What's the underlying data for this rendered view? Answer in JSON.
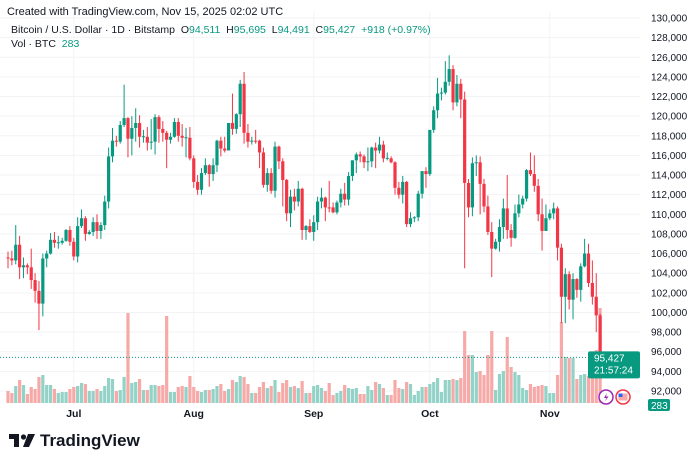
{
  "header": {
    "created": "Created with TradingView.com, Nov 15, 2025 02:02 UTC",
    "symbol": "Bitcoin / U.S. Dollar · 1D · Bitstamp",
    "open_label": "O",
    "open": "94,511",
    "high_label": "H",
    "high": "95,695",
    "low_label": "L",
    "low": "94,491",
    "close_label": "C",
    "close": "95,427",
    "change": "+918 (+0.97%)",
    "volume_label": "Vol · BTC",
    "volume": "283"
  },
  "price_label": {
    "price": "95,427",
    "countdown": "21:57:24"
  },
  "volume_badge": "283",
  "brand": "TradingView",
  "icons": [
    "lightning-event-icon",
    "us-flag-event-icon"
  ],
  "colors": {
    "up": "#089981",
    "down": "#f23645",
    "up_volume": "#92d2c7",
    "down_volume": "#f7a9a7",
    "grid": "#f2f3f5"
  },
  "chart_data": {
    "type": "candlestick",
    "ylim": [
      92000,
      130000
    ],
    "y_ticks": [
      "130,000",
      "128,000",
      "126,000",
      "124,000",
      "122,000",
      "120,000",
      "118,000",
      "116,000",
      "114,000",
      "112,000",
      "110,000",
      "108,000",
      "106,000",
      "104,000",
      "102,000",
      "100,000",
      "98,000",
      "96,000",
      "94,000",
      "92,000"
    ],
    "x_ticks": [
      {
        "date": "07-01",
        "label": "Jul"
      },
      {
        "date": "08-01",
        "label": "Aug"
      },
      {
        "date": "09-01",
        "label": "Sep"
      },
      {
        "date": "10-01",
        "label": "Oct"
      },
      {
        "date": "11-01",
        "label": "Nov"
      }
    ],
    "columns": [
      "date",
      "open",
      "high",
      "low",
      "close",
      "volume"
    ],
    "rows": [
      [
        "06-14",
        105600,
        106200,
        104500,
        105500,
        1200
      ],
      [
        "06-15",
        105500,
        106300,
        104800,
        105300,
        1000
      ],
      [
        "06-16",
        105300,
        108900,
        104900,
        106900,
        1700
      ],
      [
        "06-17",
        106900,
        107800,
        103400,
        104600,
        2300
      ],
      [
        "06-18",
        104600,
        105600,
        103500,
        104800,
        1800
      ],
      [
        "06-19",
        104800,
        105000,
        103900,
        104600,
        900
      ],
      [
        "06-20",
        104600,
        106500,
        102400,
        103300,
        1600
      ],
      [
        "06-21",
        103300,
        104000,
        101000,
        102200,
        1400
      ],
      [
        "06-22",
        102200,
        103200,
        98200,
        100900,
        2600
      ],
      [
        "06-23",
        100900,
        106000,
        99600,
        105500,
        2800
      ],
      [
        "06-24",
        105500,
        106300,
        104600,
        106000,
        1800
      ],
      [
        "06-25",
        106000,
        108100,
        105900,
        107400,
        1800
      ],
      [
        "06-26",
        107400,
        108200,
        106600,
        107100,
        1400
      ],
      [
        "06-27",
        107100,
        107800,
        106500,
        107150,
        1000
      ],
      [
        "06-28",
        107100,
        107600,
        106900,
        107300,
        1100
      ],
      [
        "06-29",
        107300,
        108500,
        107200,
        108400,
        1100
      ],
      [
        "06-30",
        108400,
        108800,
        106800,
        107200,
        1400
      ],
      [
        "07-01",
        107200,
        107600,
        105300,
        105700,
        1600
      ],
      [
        "07-02",
        105700,
        109700,
        105100,
        108800,
        1700
      ],
      [
        "07-03",
        108800,
        110500,
        108600,
        109600,
        2000
      ],
      [
        "07-04",
        109600,
        109800,
        107300,
        108000,
        1900
      ],
      [
        "07-05",
        108000,
        108400,
        107900,
        108200,
        1200
      ],
      [
        "07-06",
        108200,
        109700,
        107800,
        109200,
        1200
      ],
      [
        "07-07",
        109200,
        110000,
        107500,
        108300,
        1400
      ],
      [
        "07-08",
        108300,
        109200,
        107500,
        108900,
        1200
      ],
      [
        "07-09",
        108900,
        111900,
        108400,
        111300,
        1700
      ],
      [
        "07-10",
        111300,
        116800,
        110600,
        115900,
        2500
      ],
      [
        "07-11",
        115900,
        118800,
        115300,
        117500,
        2400
      ],
      [
        "07-12",
        117500,
        118000,
        116900,
        117400,
        1200
      ],
      [
        "07-13",
        117400,
        119500,
        117200,
        119100,
        1300
      ],
      [
        "07-14",
        119100,
        123200,
        118900,
        119800,
        2600
      ],
      [
        "07-15",
        119800,
        119900,
        115800,
        117700,
        9000
      ],
      [
        "07-16",
        117700,
        120000,
        116000,
        118800,
        2000
      ],
      [
        "07-17",
        118800,
        120800,
        117400,
        119300,
        2100
      ],
      [
        "07-18",
        119300,
        120100,
        116800,
        117900,
        2400
      ],
      [
        "07-19",
        117900,
        118600,
        117300,
        117950,
        1300
      ],
      [
        "07-20",
        117900,
        118900,
        116500,
        117300,
        1300
      ],
      [
        "07-21",
        117300,
        119700,
        116600,
        117400,
        1800
      ],
      [
        "07-22",
        117400,
        120200,
        116100,
        119900,
        1800
      ],
      [
        "07-23",
        119900,
        120100,
        117300,
        118700,
        1700
      ],
      [
        "07-24",
        118700,
        119500,
        117400,
        118300,
        1800
      ],
      [
        "07-25",
        118300,
        118500,
        114700,
        117600,
        8700
      ],
      [
        "07-26",
        117600,
        118300,
        117200,
        117900,
        1100
      ],
      [
        "07-27",
        117900,
        119800,
        117800,
        119400,
        1100
      ],
      [
        "07-28",
        119400,
        119800,
        117400,
        118000,
        1600
      ],
      [
        "07-29",
        118000,
        119200,
        116900,
        117800,
        1700
      ],
      [
        "07-30",
        117800,
        118800,
        115800,
        117850,
        1600
      ],
      [
        "07-31",
        117800,
        118900,
        115500,
        115700,
        2700
      ],
      [
        "08-01",
        115700,
        116000,
        112700,
        113300,
        1600
      ],
      [
        "08-02",
        113300,
        114000,
        112000,
        112500,
        1200
      ],
      [
        "08-03",
        112500,
        114700,
        112000,
        114200,
        1100
      ],
      [
        "08-04",
        114200,
        115700,
        114000,
        115000,
        1300
      ],
      [
        "08-05",
        115000,
        115100,
        112800,
        114100,
        1300
      ],
      [
        "08-06",
        114100,
        115700,
        113400,
        115000,
        1400
      ],
      [
        "08-07",
        115000,
        117600,
        114300,
        117500,
        1700
      ],
      [
        "08-08",
        117500,
        117900,
        115900,
        116700,
        1900
      ],
      [
        "08-09",
        116700,
        117900,
        116300,
        116500,
        1200
      ],
      [
        "08-10",
        116500,
        119300,
        116500,
        119300,
        1400
      ],
      [
        "08-11",
        119300,
        122300,
        118100,
        118700,
        2300
      ],
      [
        "08-12",
        118700,
        120300,
        118200,
        120200,
        2100
      ],
      [
        "08-13",
        120200,
        123700,
        118900,
        123300,
        2700
      ],
      [
        "08-14",
        123300,
        124500,
        117200,
        118300,
        2600
      ],
      [
        "08-15",
        118300,
        119200,
        116800,
        117400,
        1900
      ],
      [
        "08-16",
        117400,
        117900,
        117100,
        117500,
        1000
      ],
      [
        "08-17",
        117500,
        118600,
        117200,
        117450,
        1000
      ],
      [
        "08-18",
        117500,
        117600,
        114700,
        116300,
        1600
      ],
      [
        "08-19",
        116300,
        116800,
        112700,
        113000,
        2100
      ],
      [
        "08-20",
        113000,
        114700,
        112300,
        114200,
        1500
      ],
      [
        "08-21",
        114200,
        114700,
        112100,
        112400,
        1700
      ],
      [
        "08-22",
        112400,
        117400,
        111700,
        116900,
        2300
      ],
      [
        "08-23",
        116900,
        117000,
        114600,
        115400,
        1100
      ],
      [
        "08-24",
        115400,
        115700,
        110800,
        113500,
        2000
      ],
      [
        "08-25",
        113500,
        113600,
        109300,
        110100,
        2300
      ],
      [
        "08-26",
        110100,
        112500,
        108700,
        111800,
        1600
      ],
      [
        "08-27",
        111800,
        112600,
        110400,
        111300,
        1700
      ],
      [
        "08-28",
        111300,
        113400,
        110800,
        112600,
        1500
      ],
      [
        "08-29",
        112600,
        112700,
        107400,
        108400,
        2200
      ],
      [
        "08-30",
        108400,
        108900,
        107400,
        108800,
        1000
      ],
      [
        "08-31",
        108800,
        109500,
        108100,
        108200,
        1000
      ],
      [
        "09-01",
        108200,
        109900,
        107300,
        109200,
        1700
      ],
      [
        "09-02",
        109200,
        111800,
        108400,
        111300,
        1800
      ],
      [
        "09-03",
        111300,
        112700,
        110600,
        111700,
        1500
      ],
      [
        "09-04",
        111700,
        111800,
        109300,
        110700,
        1200
      ],
      [
        "09-05",
        110700,
        113400,
        110200,
        110650,
        2000
      ],
      [
        "09-06",
        110700,
        111200,
        110100,
        110200,
        800
      ],
      [
        "09-07",
        110200,
        111400,
        110000,
        111200,
        1000
      ],
      [
        "09-08",
        111200,
        112600,
        110700,
        112100,
        1200
      ],
      [
        "09-09",
        112100,
        113200,
        110900,
        111500,
        1800
      ],
      [
        "09-10",
        111500,
        114300,
        110900,
        113900,
        1500
      ],
      [
        "09-11",
        113900,
        115500,
        113400,
        115500,
        1400
      ],
      [
        "09-12",
        115500,
        116300,
        114200,
        116100,
        1500
      ],
      [
        "09-13",
        116100,
        116400,
        115300,
        115900,
        900
      ],
      [
        "09-14",
        115900,
        116100,
        114700,
        115300,
        900
      ],
      [
        "09-15",
        115300,
        116800,
        114400,
        115400,
        1700
      ],
      [
        "09-16",
        115400,
        116900,
        114800,
        116800,
        1300
      ],
      [
        "09-17",
        116800,
        117300,
        114700,
        116500,
        2100
      ],
      [
        "09-18",
        116500,
        117900,
        116200,
        117100,
        1900
      ],
      [
        "09-19",
        117100,
        117500,
        115300,
        115700,
        1500
      ],
      [
        "09-20",
        115700,
        116300,
        115500,
        115750,
        800
      ],
      [
        "09-21",
        115700,
        115900,
        115200,
        115300,
        800
      ],
      [
        "09-22",
        115300,
        115400,
        112000,
        112700,
        2300
      ],
      [
        "09-23",
        112700,
        113300,
        111600,
        112000,
        1500
      ],
      [
        "09-24",
        112000,
        113900,
        111100,
        113300,
        1400
      ],
      [
        "09-25",
        113300,
        113400,
        108700,
        109000,
        2100
      ],
      [
        "09-26",
        109000,
        110200,
        108700,
        109600,
        1900
      ],
      [
        "09-27",
        109600,
        109800,
        109200,
        109700,
        800
      ],
      [
        "09-28",
        109700,
        112400,
        109300,
        112100,
        1200
      ],
      [
        "09-29",
        112100,
        114400,
        111600,
        114400,
        1600
      ],
      [
        "09-30",
        114400,
        114800,
        112700,
        114100,
        1600
      ],
      [
        "10-01",
        114100,
        118600,
        113900,
        118600,
        1900
      ],
      [
        "10-02",
        118600,
        121000,
        118300,
        120600,
        2100
      ],
      [
        "10-03",
        120600,
        123900,
        119800,
        122300,
        2500
      ],
      [
        "10-04",
        122300,
        122900,
        121600,
        122400,
        1100
      ],
      [
        "10-05",
        122400,
        125600,
        122200,
        123500,
        2300
      ],
      [
        "10-06",
        123500,
        126200,
        123100,
        124800,
        2300
      ],
      [
        "10-07",
        124800,
        125200,
        120600,
        121400,
        2400
      ],
      [
        "10-08",
        121400,
        124200,
        121000,
        123300,
        2300
      ],
      [
        "10-09",
        123300,
        123800,
        119800,
        121700,
        2500
      ],
      [
        "10-10",
        121700,
        122500,
        104500,
        113200,
        7200
      ],
      [
        "10-11",
        113200,
        113600,
        109700,
        110700,
        4800
      ],
      [
        "10-12",
        110700,
        115800,
        109800,
        115200,
        4800
      ],
      [
        "10-13",
        115200,
        116000,
        113900,
        115300,
        3100
      ],
      [
        "10-14",
        115300,
        115900,
        110000,
        113100,
        3200
      ],
      [
        "10-15",
        113100,
        113600,
        110200,
        110800,
        2800
      ],
      [
        "10-16",
        110800,
        111900,
        107900,
        108200,
        4800
      ],
      [
        "10-17",
        108200,
        109200,
        103600,
        106500,
        7200
      ],
      [
        "10-18",
        106500,
        107500,
        106400,
        107200,
        1300
      ],
      [
        "10-19",
        107200,
        109500,
        106200,
        108700,
        2900
      ],
      [
        "10-20",
        108700,
        111600,
        107500,
        110600,
        3200
      ],
      [
        "10-21",
        110600,
        114000,
        107500,
        108400,
        6600
      ],
      [
        "10-22",
        108400,
        109000,
        106700,
        107600,
        3600
      ],
      [
        "10-23",
        107600,
        111000,
        107500,
        110100,
        3100
      ],
      [
        "10-24",
        110100,
        112000,
        109700,
        111000,
        2800
      ],
      [
        "10-25",
        111000,
        111900,
        110600,
        111600,
        1500
      ],
      [
        "10-26",
        111600,
        114600,
        111300,
        114500,
        1300
      ],
      [
        "10-27",
        114500,
        116300,
        113900,
        114100,
        1900
      ],
      [
        "10-28",
        114100,
        116000,
        112300,
        112900,
        1600
      ],
      [
        "10-29",
        112900,
        113600,
        109300,
        110000,
        1700
      ],
      [
        "10-30",
        110000,
        111600,
        106300,
        108300,
        1800
      ],
      [
        "10-31",
        108300,
        111000,
        108300,
        109600,
        1700
      ],
      [
        "11-01",
        109600,
        110500,
        109400,
        110100,
        1000
      ],
      [
        "11-02",
        110100,
        111200,
        109500,
        110600,
        1000
      ],
      [
        "11-03",
        110600,
        110800,
        105300,
        106600,
        2800
      ],
      [
        "11-04",
        106600,
        107000,
        98900,
        101600,
        8100
      ],
      [
        "11-05",
        101600,
        104500,
        98900,
        103900,
        4600
      ],
      [
        "11-06",
        103900,
        104200,
        100300,
        101300,
        4500
      ],
      [
        "11-07",
        101300,
        104000,
        99300,
        103400,
        4500
      ],
      [
        "11-08",
        103400,
        103500,
        101500,
        102300,
        2400
      ],
      [
        "11-09",
        102300,
        105000,
        101100,
        104700,
        2800
      ],
      [
        "11-10",
        104700,
        107500,
        104600,
        106000,
        2900
      ],
      [
        "11-11",
        106000,
        107000,
        102600,
        103000,
        2700
      ],
      [
        "11-12",
        103000,
        105300,
        100800,
        101600,
        2800
      ],
      [
        "11-13",
        101600,
        104000,
        98000,
        99700,
        5300
      ],
      [
        "11-14",
        99700,
        99900,
        94000,
        94500,
        9500
      ],
      [
        "11-15",
        94511,
        95695,
        94491,
        95427,
        283
      ]
    ]
  }
}
